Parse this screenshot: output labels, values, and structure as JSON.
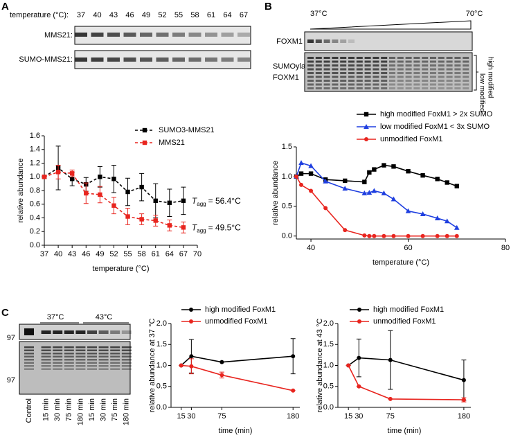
{
  "blots": {
    "A": {
      "label": "A",
      "lane_header": "temperature (°C):",
      "lanes": [
        "37",
        "40",
        "43",
        "46",
        "49",
        "52",
        "55",
        "58",
        "61",
        "64",
        "67"
      ],
      "rows": [
        "MMS21:",
        "SUMO-MMS21:"
      ]
    },
    "B": {
      "label": "B",
      "start": "37°C",
      "end": "70°C",
      "rows": [
        "FOXM1"
      ],
      "sumo_row": [
        "SUMOylated",
        "FOXM1"
      ],
      "bracket": [
        "high modified",
        "low modified"
      ]
    },
    "C": {
      "label": "C",
      "groups": [
        "37°C",
        "43°C"
      ],
      "markers": [
        "97",
        "97"
      ],
      "lanes": [
        "Control",
        "15 min",
        "30 min",
        "75 min",
        "180 min",
        "15 min",
        "30 min",
        "75 min",
        "180 min"
      ]
    }
  },
  "chart_data": [
    {
      "type": "line",
      "dashed": true,
      "x": [
        37,
        40,
        43,
        46,
        49,
        52,
        55,
        58,
        61,
        64,
        67
      ],
      "xlim": [
        37,
        70
      ],
      "xticks": [
        37,
        40,
        43,
        46,
        49,
        52,
        55,
        58,
        61,
        64,
        67,
        70
      ],
      "ylim": [
        0,
        1.6
      ],
      "yticks": [
        {
          "value": 0,
          "label": "0.0"
        },
        0.2,
        0.4,
        0.6,
        0.8,
        {
          "value": 1,
          "label": "1.0"
        },
        1.2,
        1.4,
        1.6
      ],
      "xlabel": "temperature (°C)",
      "ylabel": "relative abundance",
      "series": [
        {
          "name": "SUMO3-MMS21",
          "color": "#000000",
          "marker": "square",
          "values": [
            1.0,
            1.13,
            0.97,
            0.89,
            1.0,
            0.97,
            0.78,
            0.85,
            0.65,
            0.62,
            0.65
          ],
          "errors": [
            0.02,
            0.32,
            0.1,
            0.1,
            0.15,
            0.2,
            0.2,
            0.2,
            0.25,
            0.2,
            0.2
          ],
          "annotation": {
            "symbol": "T",
            "subscript": "agg",
            "text": "= 56.4°C"
          }
        },
        {
          "name": "MMS21",
          "color": "#e8251f",
          "marker": "square",
          "values": [
            1.0,
            1.07,
            1.05,
            0.76,
            0.74,
            0.58,
            0.42,
            0.38,
            0.36,
            0.29,
            0.26
          ],
          "errors": [
            0.02,
            0.1,
            0.05,
            0.15,
            0.12,
            0.12,
            0.12,
            0.08,
            0.08,
            0.08,
            0.08
          ],
          "annotation": {
            "symbol": "T",
            "subscript": "agg",
            "text": "= 49.5°C"
          }
        }
      ]
    },
    {
      "type": "line",
      "x": [
        37,
        38,
        40,
        43,
        47,
        51,
        52,
        53,
        55,
        57,
        60,
        63,
        66,
        68,
        70
      ],
      "xlim": [
        37,
        80
      ],
      "xticks": [
        40,
        60,
        80
      ],
      "ylim": [
        -0.05,
        1.5
      ],
      "yticks": [
        {
          "value": 0,
          "label": "0.0"
        },
        0.5,
        {
          "value": 1,
          "label": "1.0"
        },
        1.5
      ],
      "xlabel": "temperature (°C)",
      "ylabel": "relative abundance",
      "series": [
        {
          "name": "high modified FoxM1 > 2x SUMO",
          "color": "#000000",
          "marker": "square",
          "values": [
            1.0,
            1.05,
            1.05,
            0.95,
            0.93,
            0.91,
            1.07,
            1.12,
            1.19,
            1.17,
            1.09,
            1.02,
            0.96,
            0.9,
            0.84
          ]
        },
        {
          "name": "low modified FoxM1 < 3x SUMO",
          "color": "#1f3fe0",
          "marker": "triangle",
          "values": [
            1.0,
            1.23,
            1.18,
            0.92,
            0.8,
            0.72,
            0.73,
            0.76,
            0.72,
            0.62,
            0.42,
            0.37,
            0.3,
            0.25,
            0.14
          ]
        },
        {
          "name": "unmodified FoxM1",
          "color": "#e8251f",
          "marker": "circle",
          "values": [
            1.0,
            0.86,
            0.76,
            0.47,
            0.1,
            0.01,
            0,
            0,
            0,
            0,
            0,
            0,
            0,
            0,
            0
          ]
        }
      ]
    },
    {
      "type": "line",
      "x": [
        15,
        30,
        75,
        180
      ],
      "xlim": [
        0,
        190
      ],
      "xticks": [
        15,
        30,
        75,
        180
      ],
      "ylim": [
        0,
        2
      ],
      "yticks": [
        {
          "value": 0,
          "label": "0.0"
        },
        0.5,
        {
          "value": 1,
          "label": "1.0"
        },
        1.5,
        {
          "value": 2,
          "label": "2.0"
        }
      ],
      "xlabel": "time (min)",
      "ylabel": "relative abundance at 37 °C",
      "series": [
        {
          "name": "high modified FoxM1",
          "color": "#000000",
          "marker": "circle",
          "values": [
            1.0,
            1.22,
            1.08,
            1.22
          ],
          "errors": [
            0,
            0.4,
            0,
            0.42
          ]
        },
        {
          "name": "unmodified FoxM1",
          "color": "#e8251f",
          "marker": "circle",
          "values": [
            1.0,
            0.98,
            0.77,
            0.4
          ],
          "errors": [
            0,
            0.18,
            0.07,
            0
          ]
        }
      ]
    },
    {
      "type": "line",
      "x": [
        15,
        30,
        75,
        180
      ],
      "xlim": [
        0,
        190
      ],
      "xticks": [
        15,
        30,
        75,
        180
      ],
      "ylim": [
        0,
        2
      ],
      "yticks": [
        {
          "value": 0,
          "label": "0.0"
        },
        0.5,
        {
          "value": 1,
          "label": "1.0"
        },
        1.5,
        {
          "value": 2,
          "label": "2.0"
        }
      ],
      "xlabel": "time (min)",
      "ylabel": "relative abundance at 43 °C",
      "series": [
        {
          "name": "high modified FoxM1",
          "color": "#000000",
          "marker": "circle",
          "values": [
            1.0,
            1.18,
            1.13,
            0.65
          ],
          "errors": [
            0,
            0.45,
            0.7,
            0.48
          ]
        },
        {
          "name": "unmodified FoxM1",
          "color": "#e8251f",
          "marker": "circle",
          "values": [
            1.0,
            0.5,
            0.2,
            0.18
          ],
          "errors": [
            0,
            0,
            0,
            0.05
          ]
        }
      ]
    }
  ]
}
